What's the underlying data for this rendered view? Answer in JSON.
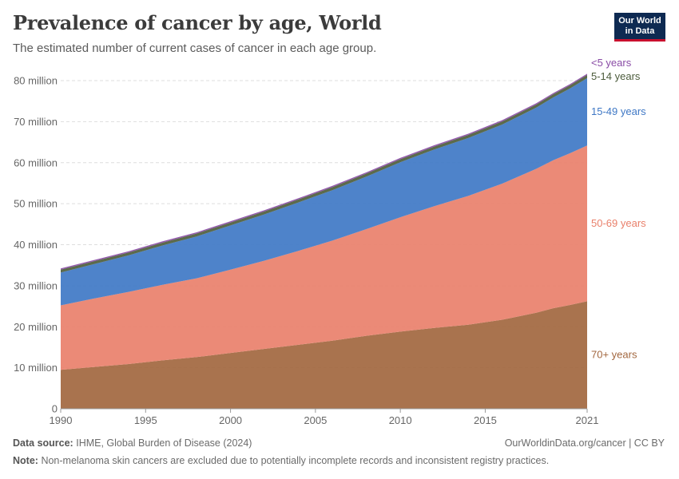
{
  "header": {
    "title": "Prevalence of cancer by age, World",
    "subtitle": "The estimated number of current cases of cancer in each age group."
  },
  "logo": {
    "line1": "Our World",
    "line2": "in Data"
  },
  "footer": {
    "source_label": "Data source:",
    "source_text": "IHME, Global Burden of Disease (2024)",
    "url": "OurWorldinData.org/cancer | CC BY",
    "note_label": "Note:",
    "note_text": "Non-melanoma skin cancers are excluded due to potentially incomplete records and inconsistent registry practices."
  },
  "chart_data": {
    "type": "area",
    "stacked": true,
    "title": "Prevalence of cancer by age, World",
    "subtitle": "The estimated number of current cases of cancer in each age group.",
    "x": [
      1990,
      1992,
      1994,
      1996,
      1998,
      2000,
      2002,
      2004,
      2006,
      2008,
      2010,
      2012,
      2014,
      2016,
      2018,
      2019,
      2020,
      2021
    ],
    "x_ticks": [
      "1990",
      "1995",
      "2000",
      "2005",
      "2010",
      "2015",
      "2021"
    ],
    "x_tick_values": [
      1990,
      1995,
      2000,
      2005,
      2010,
      2015,
      2021
    ],
    "ylim": [
      0,
      80000000
    ],
    "y_ticks": [
      "0",
      "10 million",
      "20 million",
      "30 million",
      "40 million",
      "50 million",
      "60 million",
      "70 million",
      "80 million"
    ],
    "y_tick_values": [
      0,
      10000000,
      20000000,
      30000000,
      40000000,
      50000000,
      60000000,
      70000000,
      80000000
    ],
    "grid": true,
    "legend": "right-end labels",
    "series": [
      {
        "name": "70+ years",
        "color": "#a2673f",
        "values": [
          9500000,
          10200000,
          10900000,
          11800000,
          12600000,
          13600000,
          14600000,
          15600000,
          16600000,
          17800000,
          18800000,
          19700000,
          20500000,
          21700000,
          23400000,
          24500000,
          25300000,
          26200000
        ]
      },
      {
        "name": "50-69 years",
        "color": "#e9806b",
        "values": [
          15700000,
          16700000,
          17600000,
          18400000,
          19200000,
          20300000,
          21500000,
          22900000,
          24400000,
          26000000,
          27900000,
          29700000,
          31400000,
          33200000,
          35100000,
          36100000,
          37000000,
          38000000
        ]
      },
      {
        "name": "15-49 years",
        "color": "#3f78c5",
        "values": [
          8000000,
          8400000,
          8900000,
          9600000,
          10200000,
          10800000,
          11300000,
          11800000,
          12300000,
          12800000,
          13400000,
          13800000,
          14100000,
          14400000,
          14900000,
          15300000,
          15800000,
          16400000
        ]
      },
      {
        "name": "5-14 years",
        "color": "#4d5d3d",
        "values": [
          700000,
          700000,
          710000,
          710000,
          720000,
          720000,
          730000,
          730000,
          740000,
          740000,
          750000,
          750000,
          760000,
          760000,
          770000,
          770000,
          770000,
          780000
        ]
      },
      {
        "name": "<5 years",
        "color": "#8a4ca6",
        "values": [
          300000,
          300000,
          300000,
          300000,
          300000,
          300000,
          300000,
          300000,
          300000,
          300000,
          300000,
          300000,
          300000,
          300000,
          300000,
          300000,
          300000,
          300000
        ]
      }
    ]
  }
}
